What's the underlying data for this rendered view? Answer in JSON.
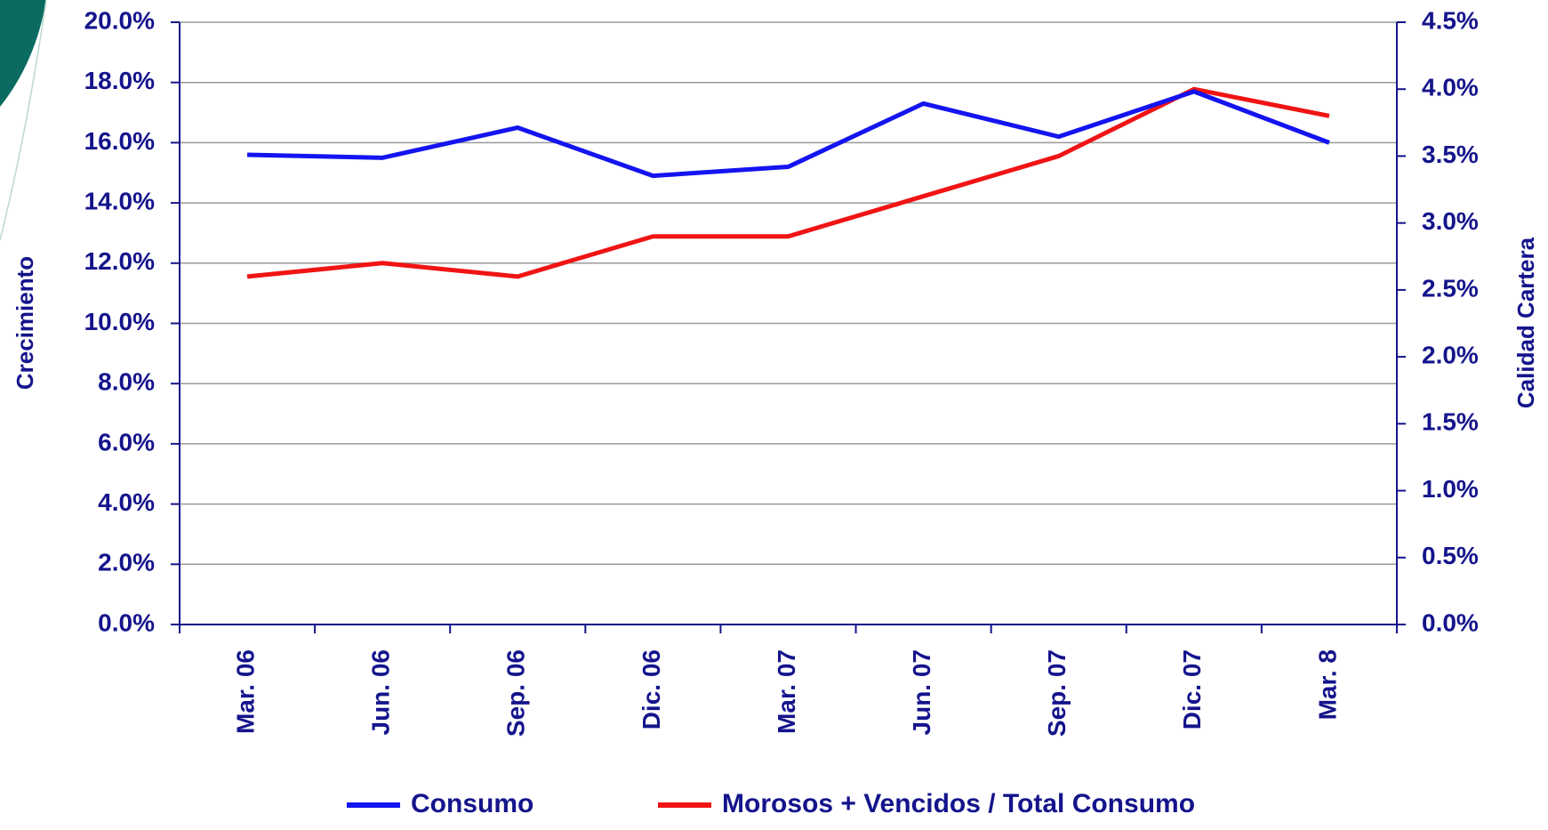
{
  "chart_data": {
    "type": "line",
    "categories": [
      "Mar. 06",
      "Jun. 06",
      "Sep. 06",
      "Dic. 06",
      "Mar. 07",
      "Jun. 07",
      "Sep. 07",
      "Dic. 07",
      "Mar. 8"
    ],
    "series": [
      {
        "name": "Consumo",
        "color": "#1414f0",
        "values": [
          15.6,
          15.5,
          16.5,
          14.9,
          15.2,
          17.3,
          16.2,
          17.7,
          16.0
        ]
      },
      {
        "name": "Morosos + Vencidos / Total Consumo",
        "color": "#f01414",
        "axis": "y2",
        "values": [
          2.6,
          2.7,
          2.6,
          2.9,
          2.9,
          3.2,
          3.5,
          4.0,
          3.8
        ]
      }
    ],
    "y_label": "Crecimiento",
    "y2_label": "Calidad Cartera",
    "ylim": [
      0,
      20
    ],
    "yticks": [
      {
        "value": 0,
        "label": "0.0%"
      },
      {
        "value": 2,
        "label": "2.0%"
      },
      {
        "value": 4,
        "label": "4.0%"
      },
      {
        "value": 6,
        "label": "6.0%"
      },
      {
        "value": 8,
        "label": "8.0%"
      },
      {
        "value": 10,
        "label": "10.0%"
      },
      {
        "value": 12,
        "label": "12.0%"
      },
      {
        "value": 14,
        "label": "14.0%"
      },
      {
        "value": 16,
        "label": "16.0%"
      },
      {
        "value": 18,
        "label": "18.0%"
      },
      {
        "value": 20,
        "label": "20.0%"
      }
    ],
    "y2lim": [
      0,
      4.5
    ],
    "y2ticks": [
      {
        "value": 0,
        "label": "0.0%"
      },
      {
        "value": 0.5,
        "label": "0.5%"
      },
      {
        "value": 1,
        "label": "1.0%"
      },
      {
        "value": 1.5,
        "label": "1.5%"
      },
      {
        "value": 2,
        "label": "2.0%"
      },
      {
        "value": 2.5,
        "label": "2.5%"
      },
      {
        "value": 3,
        "label": "3.0%"
      },
      {
        "value": 3.5,
        "label": "3.5%"
      },
      {
        "value": 4,
        "label": "4.0%"
      },
      {
        "value": 4.5,
        "label": "4.5%"
      }
    ],
    "grid": true
  }
}
